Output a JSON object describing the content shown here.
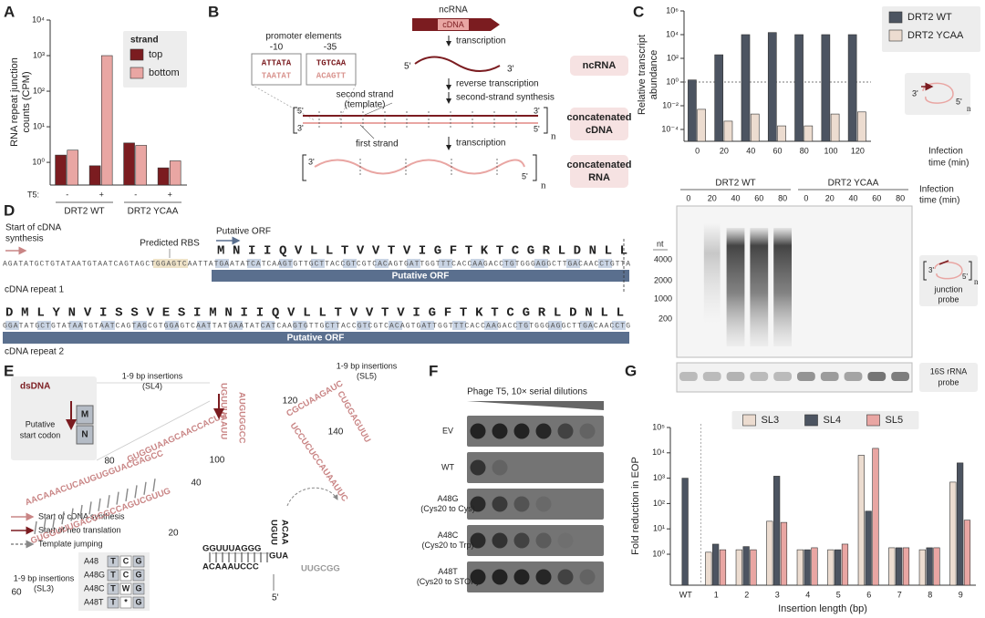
{
  "panel_labels": [
    "A",
    "B",
    "C",
    "D",
    "E",
    "F",
    "G"
  ],
  "symbols": {
    "five": "5'",
    "three": "3'",
    "n": "n"
  },
  "chart_data": [
    {
      "type": "bar",
      "log_scale": true,
      "ylabel": [
        "RNA repeat junction",
        "counts (CPM)"
      ],
      "categories": [
        "-",
        "+",
        "-",
        "+"
      ],
      "groups": [
        "DRT2 WT",
        "DRT2 YCAA"
      ],
      "x_prefix": "T5:",
      "legend_title": "strand",
      "legend": "upper right",
      "series": [
        {
          "name": "top",
          "color": "#7b1c20",
          "values": [
            1.6,
            0.8,
            3.5,
            0.7
          ]
        },
        {
          "name": "bottom",
          "color": "#e9a6a3",
          "values": [
            2.2,
            1000,
            3,
            1.1
          ]
        }
      ],
      "ylim": [
        0.23,
        10000
      ],
      "yticks": [
        {
          "value": 1,
          "label": "10⁰"
        },
        {
          "value": 10,
          "label": "10¹"
        },
        {
          "value": 100,
          "label": "10²"
        },
        {
          "value": 1000,
          "label": "10³"
        },
        {
          "value": 10000,
          "label": "10⁴"
        }
      ]
    },
    {
      "type": "bar",
      "log_scale": true,
      "ylabel": [
        "Relative transcript",
        "abundance"
      ],
      "xlabel": [
        "Infection",
        "time (min)"
      ],
      "categories": [
        0,
        20,
        40,
        60,
        80,
        100,
        120
      ],
      "legend": "right",
      "series": [
        {
          "name": "DRT2 WT",
          "color": "#4c5461",
          "values": [
            1.5,
            200,
            10000,
            15000,
            10000,
            10000,
            10000
          ]
        },
        {
          "name": "DRT2 YCAA",
          "color": "#ecdcd0",
          "values": [
            0.005,
            0.0005,
            0.002,
            0.0002,
            0.0002,
            0.002,
            0.003
          ]
        }
      ],
      "hline": 1,
      "ylim": [
        1e-05,
        1000000
      ],
      "yticks": [
        {
          "value": 0.0001,
          "label": "10⁻⁴"
        },
        {
          "value": 0.01,
          "label": "10⁻²"
        },
        {
          "value": 1,
          "label": "10⁰"
        },
        {
          "value": 100,
          "label": "10²"
        },
        {
          "value": 10000,
          "label": "10⁴"
        },
        {
          "value": 1000000,
          "label": "10⁶"
        }
      ]
    },
    {
      "type": "bar",
      "log_scale": true,
      "ylabel": [
        "Fold reduction in EOP"
      ],
      "xlabel": [
        "Insertion length (bp)"
      ],
      "categories": [
        "WT",
        1,
        2,
        3,
        4,
        5,
        6,
        7,
        8,
        9
      ],
      "legend": "upper center",
      "series": [
        {
          "name": "SL3",
          "color": "#ecdcd0",
          "values": [
            null,
            1.2,
            1.5,
            20,
            1.5,
            1.5,
            8000,
            1.8,
            1.5,
            700
          ]
        },
        {
          "name": "SL4",
          "color": "#4c5461",
          "values": [
            1000,
            2.5,
            2,
            1200,
            1.5,
            1.5,
            50,
            1.8,
            1.8,
            4000
          ]
        },
        {
          "name": "SL5",
          "color": "#e9a6a3",
          "values": [
            null,
            1.5,
            1.5,
            18,
            1.8,
            2.5,
            15000,
            1.8,
            1.8,
            22
          ]
        }
      ],
      "ylim": [
        0.06,
        100000
      ],
      "yticks": [
        {
          "value": 1,
          "label": "10⁰"
        },
        {
          "value": 10,
          "label": "10¹"
        },
        {
          "value": 100,
          "label": "10²"
        },
        {
          "value": 1000,
          "label": "10³"
        },
        {
          "value": 10000,
          "label": "10⁴"
        },
        {
          "value": 100000,
          "label": "10⁵"
        }
      ]
    }
  ],
  "panel_b": {
    "promoter_title": "promoter elements",
    "minus10": "-10",
    "minus35": "-35",
    "box10": [
      "ATTATA",
      "TAATAT"
    ],
    "box35": [
      "TGTCAA",
      "ACAGTT"
    ],
    "gene": "ncRNA",
    "cdna": "cDNA",
    "steps": [
      "transcription",
      "reverse transcription",
      "second-strand synthesis",
      "transcription"
    ],
    "second_strand": [
      "second strand",
      "(template)"
    ],
    "first_strand": "first strand",
    "stages": [
      [
        "ncRNA"
      ],
      [
        "concatenated",
        "cDNA"
      ],
      [
        "concatenated",
        "RNA"
      ]
    ]
  },
  "gel": {
    "groups": [
      "DRT2 WT",
      "DRT2 YCAA"
    ],
    "lanes": [
      0,
      20,
      40,
      60,
      80
    ],
    "time_label": [
      "Infection",
      "time (min)"
    ],
    "unit": "nt",
    "markers": [
      4000,
      2000,
      1000,
      200
    ],
    "probe1": [
      "junction",
      "probe"
    ],
    "probe2": [
      "16S rRNA",
      "probe"
    ]
  },
  "panel_d": {
    "start_label": [
      "Start of cDNA",
      "synthesis"
    ],
    "rbs": "Predicted RBS",
    "orf_label": "Putative ORF",
    "aa1": "MNIIQVLLTVVTVIGFTKTCGRLDNLL",
    "dna1": "AGATATGCTGTATAATGTAATCAGTAGCTGGAGTCAATTATGAATATCATCAAGTGTTGCTTACCGTCGTCACAGTGATTGGTTTCACCAAGACCTGTGGGAGGCTTGACAACCTGTTA",
    "orf_bar1": "Putative ORF",
    "repeat1": "cDNA repeat 1",
    "aa2": "DMLYNVISSVESIMNIIQVLLTVVTVIGFTKTCGRLDNLL",
    "dna2": "GGATATGCTGTATAATGTAATCAGTAGCGTGGAGTCAATTATGAATATCATCAAGTGTTGCTTACCGTCGTCACAGTGATTGGTTTCACCAAGACCTGTGGGAGGCTTGACAACCTG",
    "orf_bar2": "Putative ORF",
    "repeat2": "cDNA repeat 2"
  },
  "panel_e": {
    "inset": {
      "title": "dsDNA",
      "caption": [
        "Putative",
        "start codon"
      ],
      "codons": [
        "M",
        "N"
      ]
    },
    "legend": [
      "Start of cDNA synthesis",
      "Start of neo translation",
      "Template jumping"
    ],
    "insertions": [
      [
        "1-9 bp insertions",
        "(SL5)"
      ],
      [
        "1-9 bp insertions",
        "(SL4)"
      ],
      [
        "1-9 bp insertions",
        "(SL3)"
      ]
    ],
    "positions": [
      20,
      40,
      60,
      80,
      100,
      120,
      140
    ],
    "sequence": [
      "AACAAACUCAUGUGGUACGAGCC",
      "GUGGUUUGACGCGCCAGUCGUUG",
      "GUGGUAAGCAACCACUG",
      "UGUUUAAUU",
      "AUGUGGCC",
      "CGCUAAGAUC",
      "CUGGAGUUU",
      "UCCUCUCCAUAAUUC",
      "GGUUUAGGG",
      "ACAAAUCCC",
      "UUGCGG",
      "GUA",
      "UGUU",
      "ACAA"
    ],
    "table": [
      [
        "A48",
        "T",
        "C",
        "G"
      ],
      [
        "A48G",
        "T",
        "C",
        "G"
      ],
      [
        "A48C",
        "T",
        "W",
        "G"
      ],
      [
        "A48T",
        "T",
        "*",
        "G"
      ]
    ]
  },
  "panel_f": {
    "title": "Phage T5, 10× serial dilutions",
    "rows": [
      [
        "EV"
      ],
      [
        "WT"
      ],
      [
        "A48G",
        "(Cys20 to Cys)"
      ],
      [
        "A48C",
        "(Cys20 to Trp)"
      ],
      [
        "A48T",
        "(Cys20 to STOP)"
      ]
    ]
  }
}
